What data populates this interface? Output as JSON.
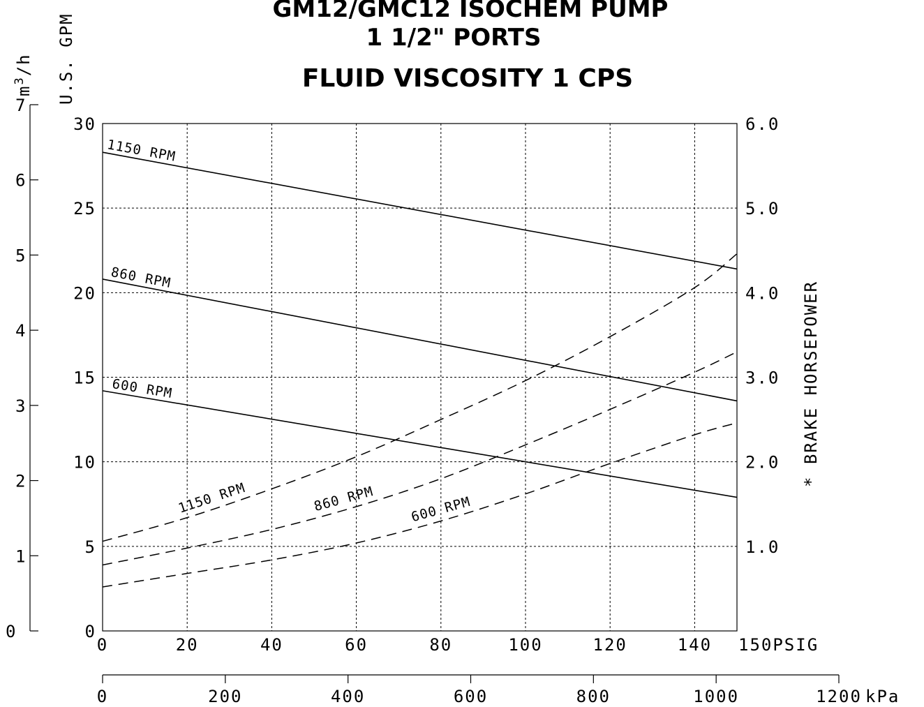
{
  "chart_data": {
    "type": "line",
    "title_lines": [
      "GM12/GMC12 ISOCHEM PUMP",
      "1 1/2\" PORTS"
    ],
    "subtitle": "FLUID VISCOSITY 1 CPS",
    "x_axis": {
      "unit": "PSIG",
      "range": [
        0,
        150
      ],
      "ticks": [
        0,
        20,
        40,
        60,
        80,
        100,
        120,
        140,
        150
      ]
    },
    "x_axis_secondary": {
      "unit": "kPa",
      "range": [
        0,
        1200
      ],
      "ticks": [
        0,
        200,
        400,
        600,
        800,
        1000,
        1200
      ]
    },
    "y_axis_left": {
      "label": "U.S. GPM",
      "range": [
        0,
        30
      ],
      "ticks": [
        0,
        5,
        10,
        15,
        20,
        25,
        30
      ]
    },
    "y_axis_far_left": {
      "label": "m3/h",
      "range": [
        0,
        7
      ],
      "ticks": [
        0,
        1,
        2,
        3,
        4,
        5,
        6,
        7
      ]
    },
    "y_axis_right": {
      "label": "* BRAKE HORSEPOWER",
      "range": [
        0,
        6
      ],
      "ticks": [
        "1.0",
        "2.0",
        "3.0",
        "4.0",
        "5.0",
        "6.0"
      ]
    },
    "grid": true,
    "series": [
      {
        "name": "1150 RPM",
        "kind": "flow_gpm",
        "style": "solid",
        "x": [
          0,
          150
        ],
        "y": [
          28.3,
          21.4
        ]
      },
      {
        "name": "860 RPM",
        "kind": "flow_gpm",
        "style": "solid",
        "x": [
          0,
          150
        ],
        "y": [
          20.8,
          13.6
        ]
      },
      {
        "name": "600 RPM",
        "kind": "flow_gpm",
        "style": "solid",
        "x": [
          0,
          150
        ],
        "y": [
          14.2,
          7.9
        ]
      },
      {
        "name": "1150 RPM",
        "kind": "brake_hp",
        "style": "dashed",
        "x": [
          0,
          20,
          40,
          60,
          80,
          100,
          120,
          140,
          150
        ],
        "y": [
          1.06,
          1.34,
          1.68,
          2.06,
          2.5,
          2.96,
          3.48,
          4.06,
          4.46
        ]
      },
      {
        "name": "860 RPM",
        "kind": "brake_hp",
        "style": "dashed",
        "x": [
          0,
          20,
          40,
          60,
          80,
          100,
          120,
          140,
          150
        ],
        "y": [
          0.78,
          0.98,
          1.2,
          1.47,
          1.8,
          2.2,
          2.62,
          3.06,
          3.3
        ]
      },
      {
        "name": "600 RPM",
        "kind": "brake_hp",
        "style": "dashed",
        "x": [
          0,
          20,
          40,
          60,
          80,
          100,
          120,
          140,
          150
        ],
        "y": [
          0.52,
          0.68,
          0.84,
          1.04,
          1.3,
          1.62,
          1.98,
          2.32,
          2.46
        ]
      }
    ],
    "curve_labels": [
      {
        "text": "1150 RPM",
        "series": 0
      },
      {
        "text": "860 RPM",
        "series": 1
      },
      {
        "text": "600 RPM",
        "series": 2
      },
      {
        "text": "1150 RPM",
        "series": 3
      },
      {
        "text": "860 RPM",
        "series": 4
      },
      {
        "text": "600 RPM",
        "series": 5
      }
    ]
  }
}
